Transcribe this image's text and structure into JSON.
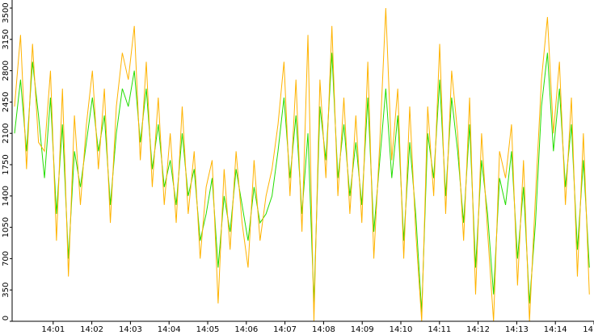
{
  "chart_data": {
    "type": "line",
    "x": [
      0,
      0.155,
      0.31,
      0.465,
      0.62,
      0.775,
      0.93,
      1.085,
      1.24,
      1.395,
      1.55,
      1.705,
      1.86,
      2.015,
      2.17,
      2.325,
      2.48,
      2.635,
      2.79,
      2.945,
      3.1,
      3.255,
      3.41,
      3.565,
      3.72,
      3.875,
      4.03,
      4.185,
      4.34,
      4.495,
      4.65,
      4.805,
      4.96,
      5.115,
      5.27,
      5.425,
      5.58,
      5.735,
      5.89,
      6.045,
      6.2,
      6.355,
      6.51,
      6.665,
      6.82,
      6.975,
      7.13,
      7.285,
      7.44,
      7.595,
      7.75,
      7.905,
      8.06,
      8.215,
      8.37,
      8.525,
      8.68,
      8.835,
      8.99,
      9.145,
      9.3,
      9.455,
      9.61,
      9.765,
      9.92,
      10.075,
      10.23,
      10.385,
      10.54,
      10.695,
      10.85,
      11.005,
      11.16,
      11.315,
      11.47,
      11.625,
      11.78,
      11.935,
      12.09,
      12.245,
      12.4,
      12.555,
      12.71,
      12.865,
      13.02,
      13.175,
      13.33,
      13.485,
      13.64,
      13.795,
      13.95,
      14.105,
      14.26,
      14.415,
      14.57,
      14.725,
      14.88
    ],
    "series": [
      {
        "color": "#22dd00",
        "values": [
          2100,
          2700,
          1900,
          2900,
          2300,
          1600,
          2500,
          1200,
          2200,
          700,
          1900,
          1500,
          2000,
          2500,
          1900,
          2300,
          1300,
          2100,
          2600,
          2400,
          2800,
          2000,
          2600,
          1700,
          2200,
          1500,
          1800,
          1300,
          2100,
          1400,
          1700,
          900,
          1200,
          1600,
          600,
          1400,
          1000,
          1700,
          1300,
          900,
          1500,
          1100,
          1200,
          1400,
          1900,
          2500,
          1600,
          2300,
          1200,
          2100,
          200,
          2400,
          1800,
          3000,
          1600,
          2200,
          1400,
          2000,
          1300,
          2500,
          1000,
          1800,
          2600,
          1600,
          2300,
          900,
          2000,
          1200,
          100,
          2100,
          1600,
          2700,
          1400,
          2500,
          1900,
          1100,
          2200,
          600,
          1800,
          1200,
          300,
          1600,
          1300,
          1900,
          700,
          1500,
          200,
          1100,
          2400,
          3000,
          1900,
          2600,
          1500,
          2200,
          800,
          1800,
          600
        ]
      },
      {
        "color": "#ffb300",
        "values": [
          2400,
          3200,
          1700,
          3100,
          2000,
          1900,
          2800,
          900,
          2600,
          500,
          2300,
          1300,
          2200,
          2800,
          1700,
          2600,
          1100,
          2400,
          3000,
          2700,
          3300,
          1800,
          2900,
          1500,
          2500,
          1300,
          2100,
          1100,
          2400,
          1200,
          1900,
          700,
          1500,
          1800,
          200,
          1700,
          800,
          1900,
          1100,
          600,
          1800,
          900,
          1400,
          1700,
          2200,
          2900,
          1400,
          2700,
          1000,
          3200,
          0,
          2700,
          1600,
          3300,
          1400,
          2500,
          1200,
          2300,
          1100,
          2900,
          700,
          2000,
          3500,
          1800,
          2600,
          700,
          2400,
          1000,
          0,
          2400,
          1400,
          3100,
          1200,
          2800,
          2100,
          900,
          2500,
          300,
          2100,
          1000,
          0,
          1900,
          1600,
          2200,
          400,
          1800,
          0,
          1400,
          2700,
          3400,
          2100,
          2900,
          1300,
          2500,
          500,
          2100,
          300
        ]
      }
    ],
    "xlim": [
      0,
      15
    ],
    "xticks": [
      {
        "value": 1,
        "label": "14:01"
      },
      {
        "value": 2,
        "label": "14:02"
      },
      {
        "value": 3,
        "label": "14:03"
      },
      {
        "value": 4,
        "label": "14:04"
      },
      {
        "value": 5,
        "label": "14:05"
      },
      {
        "value": 6,
        "label": "14:06"
      },
      {
        "value": 7,
        "label": "14:07"
      },
      {
        "value": 8,
        "label": "14:08"
      },
      {
        "value": 9,
        "label": "14:09"
      },
      {
        "value": 10,
        "label": "14:10"
      },
      {
        "value": 11,
        "label": "14:11"
      },
      {
        "value": 12,
        "label": "14:12"
      },
      {
        "value": 13,
        "label": "14:13"
      },
      {
        "value": 14,
        "label": "14:14"
      },
      {
        "value": 15,
        "label": "14"
      }
    ],
    "ylim": [
      0,
      3500
    ],
    "yticks": [
      0,
      350,
      700,
      1050,
      1400,
      1750,
      2100,
      2450,
      2800,
      3150,
      3500
    ]
  }
}
